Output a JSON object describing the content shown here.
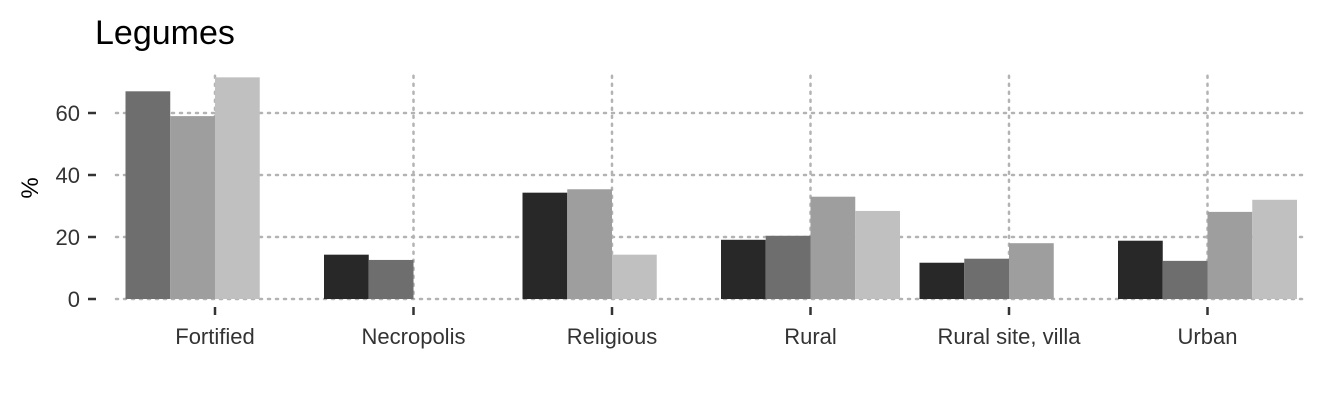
{
  "chart_data": {
    "type": "bar",
    "title": "Legumes",
    "ylabel": "%",
    "xlabel": "",
    "ylim": [
      0,
      72
    ],
    "yticks": [
      0,
      20,
      40,
      60
    ],
    "grid": true,
    "legend": "none",
    "categories": [
      "Fortified",
      "Necropolis",
      "Religious",
      "Rural",
      "Rural site, villa",
      "Urban"
    ],
    "groups": [
      {
        "category": "Fortified",
        "bars": [
          {
            "value": 67,
            "color": "#6e6e6e"
          },
          {
            "value": 59,
            "color": "#9e9e9e"
          },
          {
            "value": 71.5,
            "color": "#c0c0c0"
          }
        ]
      },
      {
        "category": "Necropolis",
        "bars": [
          {
            "value": 14.3,
            "color": "#282828"
          },
          {
            "value": 12.6,
            "color": "#6e6e6e"
          }
        ]
      },
      {
        "category": "Religious",
        "bars": [
          {
            "value": 34.3,
            "color": "#282828"
          },
          {
            "value": 35.4,
            "color": "#9e9e9e"
          },
          {
            "value": 14.3,
            "color": "#c0c0c0"
          }
        ]
      },
      {
        "category": "Rural",
        "bars": [
          {
            "value": 19.1,
            "color": "#282828"
          },
          {
            "value": 20.4,
            "color": "#6e6e6e"
          },
          {
            "value": 33,
            "color": "#9e9e9e"
          },
          {
            "value": 28.4,
            "color": "#c0c0c0"
          }
        ]
      },
      {
        "category": "Rural site, villa",
        "bars": [
          {
            "value": 11.7,
            "color": "#282828"
          },
          {
            "value": 13,
            "color": "#6e6e6e"
          },
          {
            "value": 18,
            "color": "#9e9e9e"
          }
        ]
      },
      {
        "category": "Urban",
        "bars": [
          {
            "value": 18.8,
            "color": "#282828"
          },
          {
            "value": 12.3,
            "color": "#6e6e6e"
          },
          {
            "value": 28.1,
            "color": "#9e9e9e"
          },
          {
            "value": 32,
            "color": "#c0c0c0"
          }
        ]
      }
    ]
  }
}
